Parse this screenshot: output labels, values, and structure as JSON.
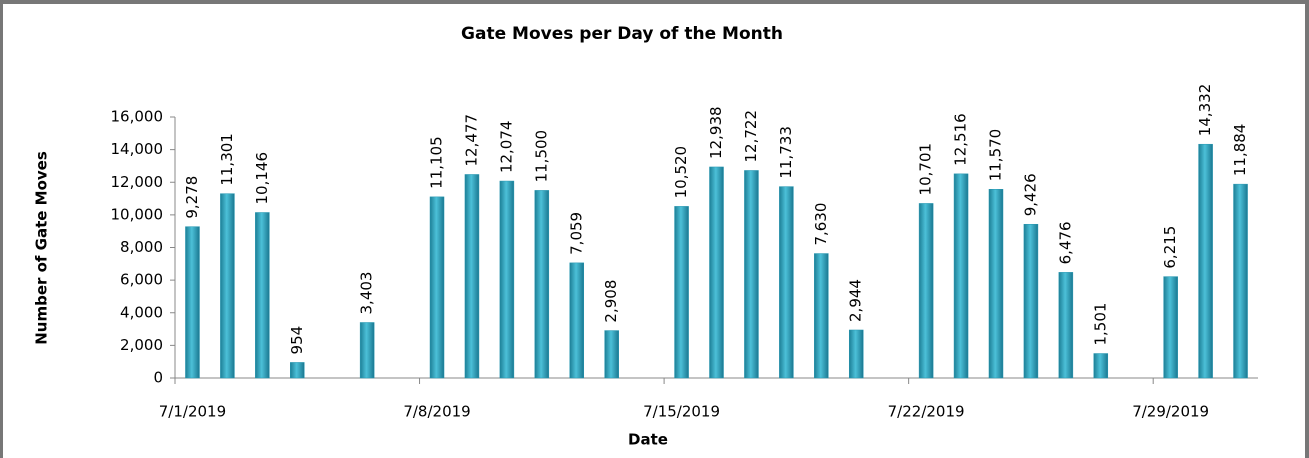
{
  "chart_data": {
    "type": "bar",
    "title": "Gate Moves per Day of the Month",
    "x_label": "Date",
    "y_label": "Number of Gate Moves",
    "categories": [
      "7/1/2019",
      null,
      null,
      null,
      null,
      null,
      null,
      "7/8/2019",
      null,
      null,
      null,
      null,
      null,
      null,
      "7/15/2019",
      null,
      null,
      null,
      null,
      null,
      null,
      "7/22/2019",
      null,
      null,
      null,
      null,
      null,
      null,
      "7/29/2019",
      null,
      null
    ],
    "values": [
      9278,
      11301,
      10146,
      954,
      null,
      3403,
      null,
      11105,
      12477,
      12074,
      11500,
      7059,
      2908,
      null,
      10520,
      12938,
      12722,
      11733,
      7630,
      2944,
      null,
      10701,
      12516,
      11570,
      9426,
      6476,
      1501,
      null,
      6215,
      14332,
      11884
    ],
    "value_labels": [
      "9,278",
      "11,301",
      "10,146",
      "954",
      null,
      "3,403",
      null,
      "11,105",
      "12,477",
      "12,074",
      "11,500",
      "7,059",
      "2,908",
      null,
      "10,520",
      "12,938",
      "12,722",
      "11,733",
      "7,630",
      "2,944",
      null,
      "10,701",
      "12,516",
      "11,570",
      "9,426",
      "6,476",
      "1,501",
      null,
      "6,215",
      "14,332",
      "11,884"
    ],
    "color": "#2596b0",
    "ylim": [
      0,
      16000
    ],
    "yticks": [
      0,
      {
        "value": 2000,
        "label": "2,000"
      },
      {
        "value": 4000,
        "label": "4,000"
      },
      {
        "value": 6000,
        "label": "6,000"
      },
      {
        "value": 8000,
        "label": "8,000"
      },
      {
        "value": 10000,
        "label": "10,000"
      },
      {
        "value": 12000,
        "label": "12,000"
      },
      {
        "value": 14000,
        "label": "14,000"
      },
      {
        "value": 16000,
        "label": "16,000"
      }
    ],
    "grid": false
  }
}
